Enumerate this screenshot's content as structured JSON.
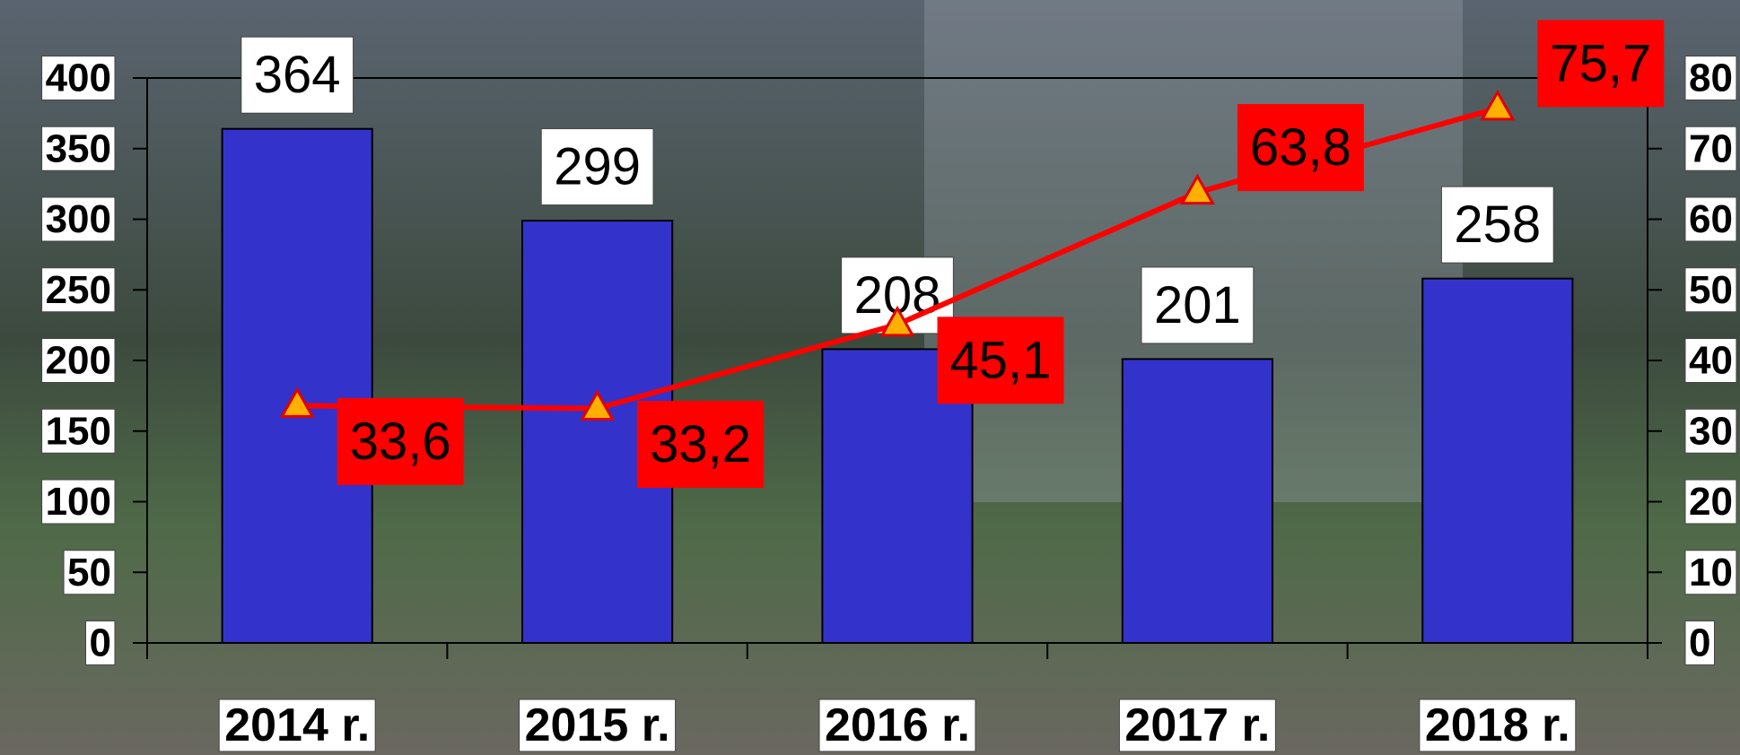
{
  "chart_data": {
    "type": "bar-line",
    "categories": [
      "2014 r.",
      "2015 r.",
      "2016 r.",
      "2017 r.",
      "2018 r."
    ],
    "series": [
      {
        "type": "bar",
        "color": "#3333cc",
        "values": [
          364,
          299,
          208,
          201,
          258
        ]
      },
      {
        "type": "line",
        "axis": "y2",
        "color": "#ff0000",
        "values": [
          33.6,
          33.2,
          45.1,
          63.8,
          75.7
        ],
        "value_labels": [
          "33,6",
          "33,2",
          "45,1",
          "63,8",
          "75,7"
        ]
      }
    ],
    "ylim": [
      0,
      400
    ],
    "yticks": [
      0,
      50,
      100,
      150,
      200,
      250,
      300,
      350,
      400
    ],
    "y2lim": [
      0,
      80
    ],
    "y2ticks": [
      0,
      10,
      20,
      30,
      40,
      50,
      60,
      70,
      80
    ]
  }
}
